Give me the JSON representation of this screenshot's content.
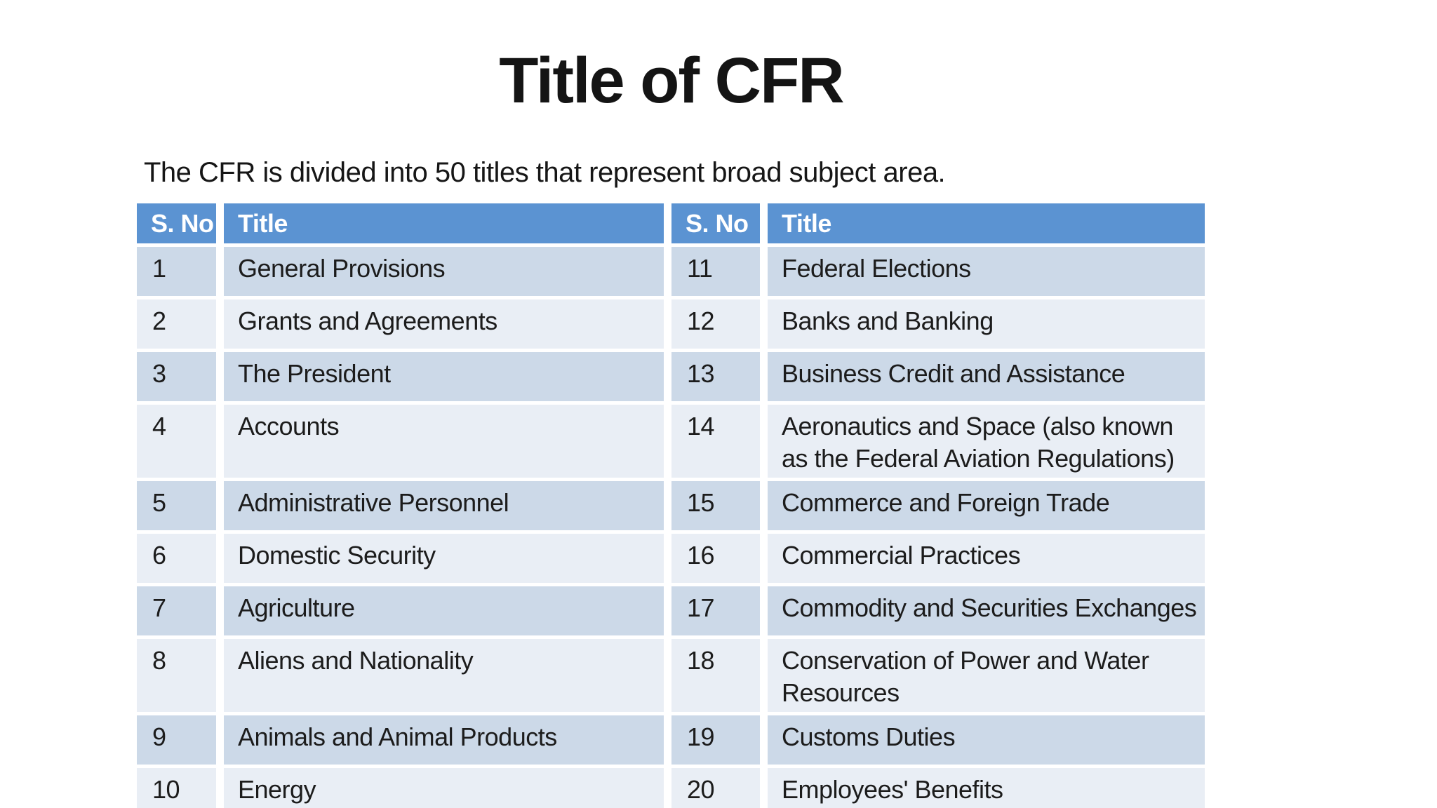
{
  "page": {
    "background": "#ffffff"
  },
  "title": "Title of CFR",
  "subtitle": "The CFR is divided into 50 titles that represent broad subject area.",
  "table": {
    "columns": [
      "S. No",
      "Title",
      "S. No",
      "Title"
    ],
    "rows": [
      {
        "left_no": "1",
        "left_title": "General Provisions",
        "right_no": "11",
        "right_title": "Federal Elections"
      },
      {
        "left_no": "2",
        "left_title": "Grants and Agreements",
        "right_no": "12",
        "right_title": "Banks and Banking"
      },
      {
        "left_no": "3",
        "left_title": "The President",
        "right_no": "13",
        "right_title": "Business Credit and Assistance"
      },
      {
        "left_no": "4",
        "left_title": "Accounts",
        "right_no": "14",
        "right_title": "Aeronautics and Space (also known as the Federal Aviation Regulations)"
      },
      {
        "left_no": "5",
        "left_title": "Administrative Personnel",
        "right_no": "15",
        "right_title": "Commerce and Foreign Trade"
      },
      {
        "left_no": "6",
        "left_title": "Domestic Security",
        "right_no": "16",
        "right_title": "Commercial Practices"
      },
      {
        "left_no": "7",
        "left_title": "Agriculture",
        "right_no": "17",
        "right_title": "Commodity and Securities Exchanges"
      },
      {
        "left_no": "8",
        "left_title": "Aliens and Nationality",
        "right_no": "18",
        "right_title": "Conservation of Power and Water Resources"
      },
      {
        "left_no": "9",
        "left_title": "Animals and Animal Products",
        "right_no": "19",
        "right_title": "Customs Duties"
      },
      {
        "left_no": "10",
        "left_title": "Energy",
        "right_no": "20",
        "right_title": "Employees' Benefits"
      }
    ],
    "colors": {
      "header_bg": "#5b93d2",
      "header_text": "#ffffff",
      "row_odd_bg": "#ccd9e8",
      "row_even_bg": "#e9eef5",
      "body_text": "#1c1c1c"
    }
  }
}
